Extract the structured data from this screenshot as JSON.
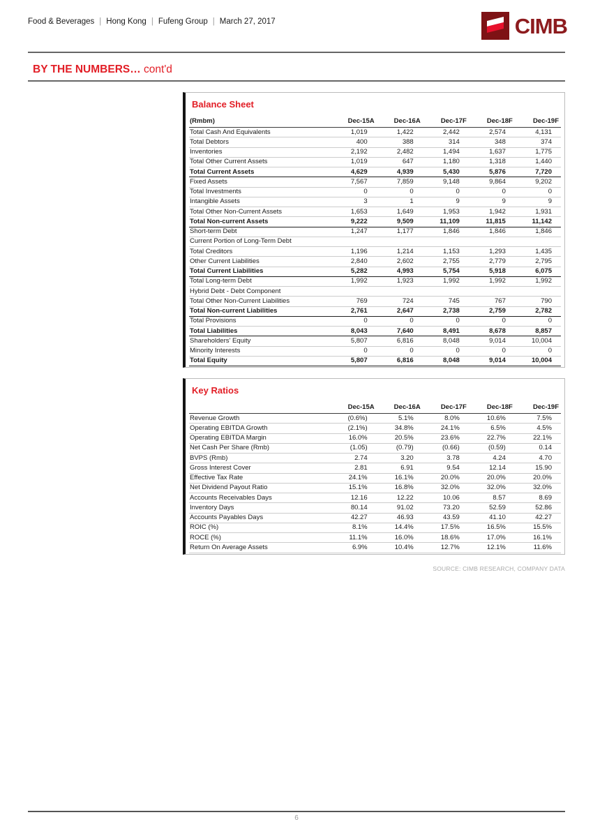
{
  "page": {
    "header": {
      "categories": [
        "Food & Beverages",
        "Hong Kong",
        "Fufeng Group",
        "March 27, 2017"
      ],
      "separator": "|"
    },
    "logo": {
      "text": "CIMB",
      "square_color": "#7E1215",
      "arrow_color": "#E8112D",
      "text_color": "#8D1B1E"
    },
    "section_title": {
      "bold": "BY THE NUMBERS…",
      "rest": " cont'd"
    },
    "accent_red": "#E21E26",
    "source_note": "SOURCE: CIMB RESEARCH, COMPANY DATA",
    "footer": {
      "page_number": "6"
    }
  },
  "balance_sheet": {
    "title": "Balance Sheet",
    "unit_label": "(Rmbm)",
    "columns": [
      "Dec-15A",
      "Dec-16A",
      "Dec-17F",
      "Dec-18F",
      "Dec-19F"
    ],
    "rows": [
      {
        "label": "Total Cash And Equivalents",
        "bold": false,
        "values": [
          "1,019",
          "1,422",
          "2,442",
          "2,574",
          "4,131"
        ]
      },
      {
        "label": "Total Debtors",
        "bold": false,
        "values": [
          "400",
          "388",
          "314",
          "348",
          "374"
        ]
      },
      {
        "label": "Inventories",
        "bold": false,
        "values": [
          "2,192",
          "2,482",
          "1,494",
          "1,637",
          "1,775"
        ]
      },
      {
        "label": "Total Other Current Assets",
        "bold": false,
        "values": [
          "1,019",
          "647",
          "1,180",
          "1,318",
          "1,440"
        ]
      },
      {
        "label": "Total Current Assets",
        "bold": true,
        "values": [
          "4,629",
          "4,939",
          "5,430",
          "5,876",
          "7,720"
        ]
      },
      {
        "label": "Fixed Assets",
        "bold": false,
        "values": [
          "7,567",
          "7,859",
          "9,148",
          "9,864",
          "9,202"
        ]
      },
      {
        "label": "Total Investments",
        "bold": false,
        "values": [
          "0",
          "0",
          "0",
          "0",
          "0"
        ]
      },
      {
        "label": "Intangible Assets",
        "bold": false,
        "values": [
          "3",
          "1",
          "9",
          "9",
          "9"
        ]
      },
      {
        "label": "Total Other Non-Current Assets",
        "bold": false,
        "values": [
          "1,653",
          "1,649",
          "1,953",
          "1,942",
          "1,931"
        ]
      },
      {
        "label": "Total Non-current Assets",
        "bold": true,
        "values": [
          "9,222",
          "9,509",
          "11,109",
          "11,815",
          "11,142"
        ]
      },
      {
        "label": "Short-term Debt",
        "bold": false,
        "values": [
          "1,247",
          "1,177",
          "1,846",
          "1,846",
          "1,846"
        ]
      },
      {
        "label": "Current Portion of Long-Term Debt",
        "bold": false,
        "values": [
          "",
          "",
          "",
          "",
          ""
        ]
      },
      {
        "label": "Total Creditors",
        "bold": false,
        "values": [
          "1,196",
          "1,214",
          "1,153",
          "1,293",
          "1,435"
        ]
      },
      {
        "label": "Other Current Liabilities",
        "bold": false,
        "values": [
          "2,840",
          "2,602",
          "2,755",
          "2,779",
          "2,795"
        ]
      },
      {
        "label": "Total Current Liabilities",
        "bold": true,
        "values": [
          "5,282",
          "4,993",
          "5,754",
          "5,918",
          "6,075"
        ]
      },
      {
        "label": "Total Long-term Debt",
        "bold": false,
        "values": [
          "1,992",
          "1,923",
          "1,992",
          "1,992",
          "1,992"
        ]
      },
      {
        "label": "Hybrid Debt - Debt Component",
        "bold": false,
        "values": [
          "",
          "",
          "",
          "",
          ""
        ]
      },
      {
        "label": "Total Other Non-Current Liabilities",
        "bold": false,
        "values": [
          "769",
          "724",
          "745",
          "767",
          "790"
        ]
      },
      {
        "label": "Total Non-current Liabilities",
        "bold": true,
        "values": [
          "2,761",
          "2,647",
          "2,738",
          "2,759",
          "2,782"
        ]
      },
      {
        "label": "Total Provisions",
        "bold": false,
        "values": [
          "0",
          "0",
          "0",
          "0",
          "0"
        ]
      },
      {
        "label": "Total Liabilities",
        "bold": true,
        "values": [
          "8,043",
          "7,640",
          "8,491",
          "8,678",
          "8,857"
        ]
      },
      {
        "label": "Shareholders' Equity",
        "bold": false,
        "values": [
          "5,807",
          "6,816",
          "8,048",
          "9,014",
          "10,004"
        ]
      },
      {
        "label": "Minority Interests",
        "bold": false,
        "values": [
          "0",
          "0",
          "0",
          "0",
          "0"
        ]
      },
      {
        "label": "Total Equity",
        "bold": true,
        "values": [
          "5,807",
          "6,816",
          "8,048",
          "9,014",
          "10,004"
        ]
      }
    ]
  },
  "key_ratios": {
    "title": "Key Ratios",
    "unit_label": "",
    "columns": [
      "Dec-15A",
      "Dec-16A",
      "Dec-17F",
      "Dec-18F",
      "Dec-19F"
    ],
    "rows": [
      {
        "label": "Revenue Growth",
        "bold": false,
        "values": [
          "(0.6%)",
          "5.1%",
          "8.0%",
          "10.6%",
          "7.5%"
        ]
      },
      {
        "label": "Operating EBITDA Growth",
        "bold": false,
        "values": [
          "(2.1%)",
          "34.8%",
          "24.1%",
          "6.5%",
          "4.5%"
        ]
      },
      {
        "label": "Operating EBITDA Margin",
        "bold": false,
        "values": [
          "16.0%",
          "20.5%",
          "23.6%",
          "22.7%",
          "22.1%"
        ]
      },
      {
        "label": "Net Cash Per Share (Rmb)",
        "bold": false,
        "values": [
          "(1.05)",
          "(0.79)",
          "(0.66)",
          "(0.59)",
          "0.14"
        ]
      },
      {
        "label": "BVPS (Rmb)",
        "bold": false,
        "values": [
          "2.74",
          "3.20",
          "3.78",
          "4.24",
          "4.70"
        ]
      },
      {
        "label": "Gross Interest Cover",
        "bold": false,
        "values": [
          "2.81",
          "6.91",
          "9.54",
          "12.14",
          "15.90"
        ]
      },
      {
        "label": "Effective Tax Rate",
        "bold": false,
        "values": [
          "24.1%",
          "16.1%",
          "20.0%",
          "20.0%",
          "20.0%"
        ]
      },
      {
        "label": "Net Dividend Payout Ratio",
        "bold": false,
        "values": [
          "15.1%",
          "16.8%",
          "32.0%",
          "32.0%",
          "32.0%"
        ]
      },
      {
        "label": "Accounts Receivables Days",
        "bold": false,
        "values": [
          "12.16",
          "12.22",
          "10.06",
          "8.57",
          "8.69"
        ]
      },
      {
        "label": "Inventory Days",
        "bold": false,
        "values": [
          "80.14",
          "91.02",
          "73.20",
          "52.59",
          "52.86"
        ]
      },
      {
        "label": "Accounts Payables Days",
        "bold": false,
        "values": [
          "42.27",
          "46.93",
          "43.59",
          "41.10",
          "42.27"
        ]
      },
      {
        "label": "ROIC (%)",
        "bold": false,
        "values": [
          "8.1%",
          "14.4%",
          "17.5%",
          "16.5%",
          "15.5%"
        ]
      },
      {
        "label": "ROCE (%)",
        "bold": false,
        "values": [
          "11.1%",
          "16.0%",
          "18.6%",
          "17.0%",
          "16.1%"
        ]
      },
      {
        "label": "Return On Average Assets",
        "bold": false,
        "values": [
          "6.9%",
          "10.4%",
          "12.7%",
          "12.1%",
          "11.6%"
        ]
      }
    ]
  }
}
